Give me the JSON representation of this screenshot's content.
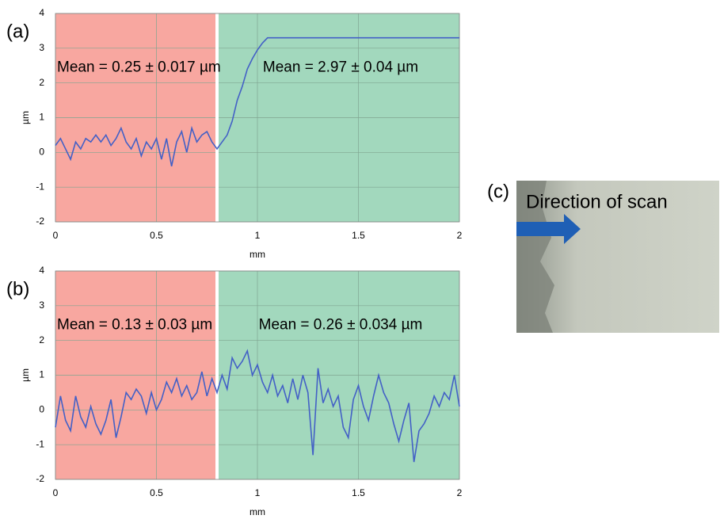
{
  "chart_data": [
    {
      "type": "line",
      "panel_label": "(a)",
      "xlabel": "mm",
      "ylabel": "µm",
      "xlim": [
        0,
        2
      ],
      "ylim": [
        -2,
        4
      ],
      "xticks": [
        0,
        0.5,
        1,
        1.5,
        2
      ],
      "yticks": [
        -2,
        -1,
        0,
        1,
        2,
        3,
        4
      ],
      "grid": true,
      "regions": [
        {
          "xlim": [
            0,
            0.8
          ],
          "color": "#f8a7a0",
          "label": "Mean = 0.25 ± 0.017 µm"
        },
        {
          "xlim": [
            0.8,
            2
          ],
          "color": "#a2d8bd",
          "label": "Mean = 2.97 ± 0.04 µm"
        }
      ],
      "x": [
        0,
        0.025,
        0.05,
        0.075,
        0.1,
        0.125,
        0.15,
        0.175,
        0.2,
        0.225,
        0.25,
        0.275,
        0.3,
        0.325,
        0.35,
        0.375,
        0.4,
        0.425,
        0.45,
        0.475,
        0.5,
        0.525,
        0.55,
        0.575,
        0.6,
        0.625,
        0.65,
        0.675,
        0.7,
        0.725,
        0.75,
        0.775,
        0.8,
        0.825,
        0.85,
        0.875,
        0.9,
        0.925,
        0.95,
        0.975,
        1,
        1.025,
        1.05,
        1.1,
        1.5,
        2
      ],
      "series": [
        {
          "color": "#4360c6",
          "values": [
            0.2,
            0.4,
            0.1,
            -0.2,
            0.3,
            0.1,
            0.4,
            0.3,
            0.5,
            0.3,
            0.5,
            0.2,
            0.4,
            0.7,
            0.3,
            0.1,
            0.4,
            -0.1,
            0.3,
            0.1,
            0.4,
            -0.2,
            0.4,
            -0.4,
            0.3,
            0.6,
            0,
            0.7,
            0.3,
            0.5,
            0.6,
            0.3,
            0.1,
            0.3,
            0.5,
            0.9,
            1.5,
            1.9,
            2.4,
            2.7,
            2.95,
            3.15,
            3.3,
            3.3,
            3.3,
            3.3
          ]
        }
      ]
    },
    {
      "type": "line",
      "panel_label": "(b)",
      "xlabel": "mm",
      "ylabel": "µm",
      "xlim": [
        0,
        2
      ],
      "ylim": [
        -2,
        4
      ],
      "xticks": [
        0,
        0.5,
        1,
        1.5,
        2
      ],
      "yticks": [
        -2,
        -1,
        0,
        1,
        2,
        3,
        4
      ],
      "grid": true,
      "regions": [
        {
          "xlim": [
            0,
            0.8
          ],
          "color": "#f8a7a0",
          "label": "Mean = 0.13 ± 0.03 µm"
        },
        {
          "xlim": [
            0.8,
            2
          ],
          "color": "#a2d8bd",
          "label": "Mean = 0.26 ± 0.034 µm"
        }
      ],
      "x": [
        0,
        0.025,
        0.05,
        0.075,
        0.1,
        0.125,
        0.15,
        0.175,
        0.2,
        0.225,
        0.25,
        0.275,
        0.3,
        0.325,
        0.35,
        0.375,
        0.4,
        0.425,
        0.45,
        0.475,
        0.5,
        0.525,
        0.55,
        0.575,
        0.6,
        0.625,
        0.65,
        0.675,
        0.7,
        0.725,
        0.75,
        0.775,
        0.8,
        0.825,
        0.85,
        0.875,
        0.9,
        0.925,
        0.95,
        0.975,
        1,
        1.025,
        1.05,
        1.075,
        1.1,
        1.125,
        1.15,
        1.175,
        1.2,
        1.225,
        1.25,
        1.275,
        1.3,
        1.325,
        1.35,
        1.375,
        1.4,
        1.425,
        1.45,
        1.475,
        1.5,
        1.525,
        1.55,
        1.575,
        1.6,
        1.625,
        1.65,
        1.675,
        1.7,
        1.725,
        1.75,
        1.775,
        1.8,
        1.825,
        1.85,
        1.875,
        1.9,
        1.925,
        1.95,
        1.975,
        2
      ],
      "series": [
        {
          "color": "#4360c6",
          "values": [
            -0.5,
            0.4,
            -0.3,
            -0.6,
            0.4,
            -0.2,
            -0.5,
            0.1,
            -0.4,
            -0.7,
            -0.3,
            0.3,
            -0.8,
            -0.2,
            0.5,
            0.3,
            0.6,
            0.4,
            -0.1,
            0.5,
            0,
            0.3,
            0.8,
            0.5,
            0.9,
            0.4,
            0.7,
            0.3,
            0.5,
            1.1,
            0.4,
            0.9,
            0.5,
            1,
            0.6,
            1.5,
            1.2,
            1.4,
            1.7,
            1,
            1.3,
            0.8,
            0.5,
            1,
            0.4,
            0.7,
            0.2,
            0.9,
            0.3,
            1,
            0.5,
            -1.3,
            1.2,
            0.2,
            0.6,
            0.1,
            0.4,
            -0.5,
            -0.8,
            0.3,
            0.7,
            0.1,
            -0.3,
            0.4,
            1,
            0.5,
            0.2,
            -0.4,
            -0.9,
            -0.3,
            0.2,
            -1.5,
            -0.6,
            -0.4,
            -0.1,
            0.4,
            0.1,
            0.5,
            0.3,
            1,
            0.1
          ]
        }
      ]
    }
  ],
  "panel_c": {
    "label": "(c)",
    "caption": "Direction of scan"
  }
}
